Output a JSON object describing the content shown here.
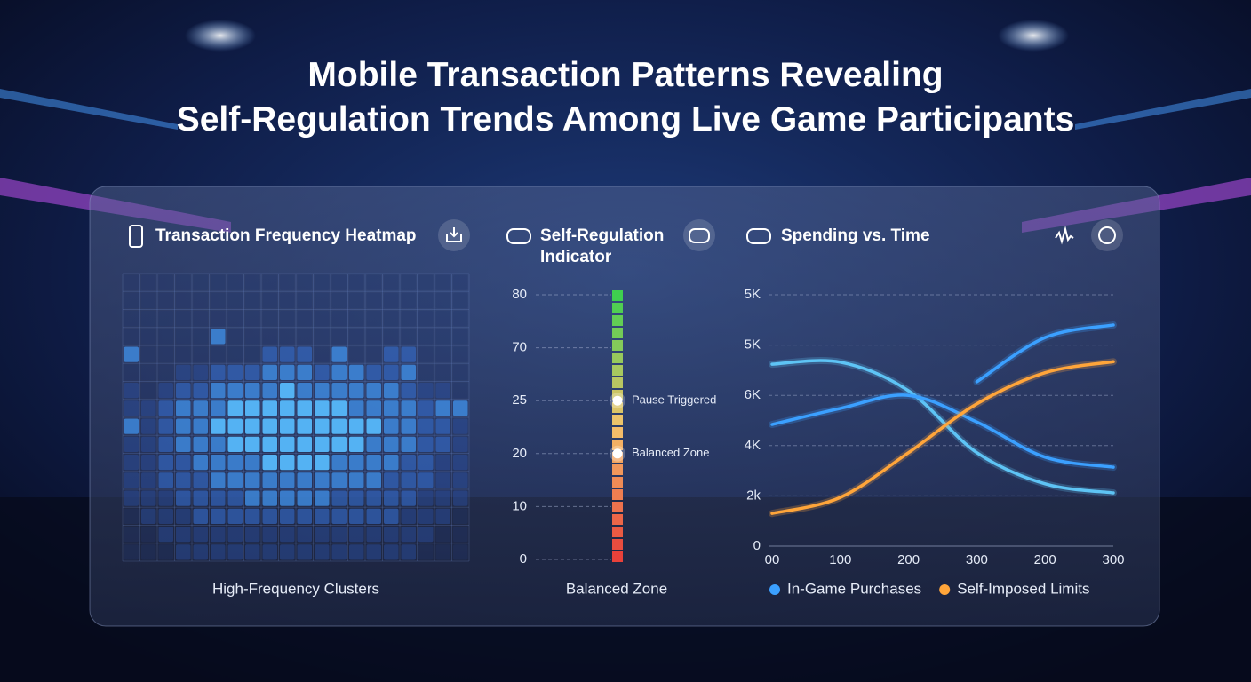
{
  "title_lines": [
    "Mobile Transaction Patterns Revealing",
    "Self-Regulation Trends Among Live Game Participants"
  ],
  "chart_data": [
    {
      "type": "heatmap",
      "title": "Transaction Frequency Heatmap",
      "caption": "High-Frequency Clusters",
      "colors": [
        "#23366e",
        "#2c4f9e",
        "#3468c4",
        "#3e8ae0",
        "#55b4f5"
      ],
      "values": [
        [
          0,
          0,
          0,
          0,
          0,
          0,
          0,
          0,
          0,
          0,
          0,
          0,
          0,
          0,
          0,
          0,
          0,
          0,
          0,
          0
        ],
        [
          0,
          0,
          0,
          0,
          0,
          0,
          0,
          0,
          0,
          0,
          0,
          0,
          0,
          0,
          0,
          0,
          0,
          0,
          0,
          0
        ],
        [
          0,
          0,
          0,
          0,
          0,
          0,
          0,
          0,
          0,
          0,
          0,
          0,
          0,
          0,
          0,
          0,
          0,
          0,
          0,
          0
        ],
        [
          0,
          0,
          0,
          0,
          0,
          3,
          0,
          0,
          0,
          0,
          0,
          0,
          0,
          0,
          0,
          0,
          0,
          0,
          0,
          0
        ],
        [
          3,
          0,
          0,
          0,
          0,
          0,
          0,
          0,
          2,
          2,
          2,
          0,
          3,
          0,
          0,
          2,
          2,
          0,
          0,
          0
        ],
        [
          0,
          0,
          0,
          1,
          1,
          2,
          2,
          2,
          3,
          3,
          3,
          2,
          3,
          3,
          2,
          2,
          3,
          0,
          0,
          0
        ],
        [
          1,
          0,
          1,
          2,
          2,
          3,
          3,
          3,
          3,
          4,
          3,
          3,
          3,
          3,
          3,
          3,
          2,
          1,
          1,
          0
        ],
        [
          1,
          1,
          2,
          3,
          3,
          3,
          4,
          4,
          4,
          4,
          4,
          4,
          4,
          3,
          3,
          3,
          3,
          2,
          3,
          3
        ],
        [
          3,
          1,
          2,
          3,
          3,
          4,
          4,
          4,
          4,
          4,
          4,
          4,
          4,
          4,
          4,
          3,
          3,
          2,
          2,
          1
        ],
        [
          1,
          1,
          2,
          3,
          3,
          3,
          4,
          4,
          4,
          4,
          4,
          4,
          4,
          4,
          3,
          3,
          3,
          2,
          2,
          1
        ],
        [
          1,
          1,
          2,
          2,
          3,
          3,
          3,
          3,
          4,
          4,
          4,
          4,
          3,
          3,
          3,
          3,
          2,
          2,
          1,
          1
        ],
        [
          1,
          1,
          2,
          2,
          2,
          3,
          3,
          3,
          3,
          3,
          3,
          3,
          3,
          3,
          3,
          2,
          2,
          2,
          1,
          1
        ],
        [
          1,
          1,
          1,
          2,
          2,
          2,
          2,
          3,
          3,
          3,
          3,
          3,
          2,
          2,
          2,
          2,
          2,
          1,
          1,
          1
        ],
        [
          0,
          1,
          1,
          1,
          2,
          2,
          2,
          2,
          2,
          2,
          2,
          2,
          2,
          2,
          2,
          2,
          1,
          1,
          1,
          0
        ],
        [
          0,
          0,
          1,
          1,
          1,
          1,
          1,
          1,
          1,
          1,
          1,
          1,
          1,
          1,
          1,
          1,
          1,
          1,
          0,
          0
        ],
        [
          0,
          0,
          0,
          1,
          1,
          1,
          1,
          1,
          1,
          1,
          1,
          1,
          1,
          1,
          1,
          1,
          1,
          0,
          0,
          0
        ]
      ]
    },
    {
      "type": "indicator",
      "title": "Self-Regulation Indicator",
      "caption": "Balanced Zone",
      "levels": [
        "0",
        "10",
        "20",
        "25",
        "70",
        "80"
      ],
      "markers": [
        {
          "label": "Pause Triggered",
          "level": "25"
        },
        {
          "label": "Balanced Zone",
          "level": "20"
        }
      ],
      "colors": [
        "#e8413a",
        "#f5c26b",
        "#3fcf4f"
      ]
    },
    {
      "type": "line",
      "title": "Spending vs. Time",
      "categories": [
        "00",
        "100",
        "200",
        "300",
        "200",
        "300"
      ],
      "ylabels": [
        "0",
        "2k",
        "4K",
        "6K",
        "5K",
        "5K"
      ],
      "grid": true,
      "legend": "bottom",
      "series": [
        {
          "color": "#5ec4f5",
          "values": [
            3.62,
            3.66,
            3.09,
            1.86,
            1.24,
            1.06
          ]
        },
        {
          "name": "In-Game Purchases",
          "color": "#3ba0ff",
          "values": [
            2.42,
            2.74,
            3.0,
            2.47,
            1.77,
            1.57
          ]
        },
        {
          "name": "Self-Imposed Limits",
          "color": "#ffa53a",
          "values": [
            0.65,
            0.97,
            1.86,
            2.83,
            3.45,
            3.67
          ]
        },
        {
          "color": "#3ba0ff",
          "values": [
            null,
            null,
            null,
            3.27,
            4.15,
            4.4
          ]
        }
      ]
    }
  ]
}
